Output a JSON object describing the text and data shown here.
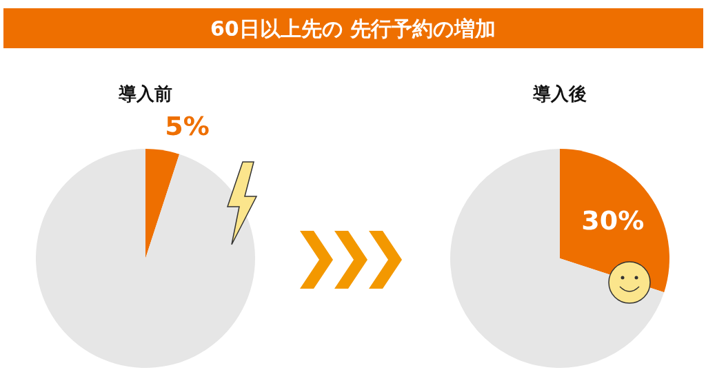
{
  "chart_data": [
    {
      "type": "pie",
      "title": "60日以上先の 先行予約の増加",
      "subtitle": "導入前",
      "categories": [
        null,
        null
      ],
      "values": [
        5,
        95
      ],
      "colors": [
        "#ee6f00",
        "#e6e6e6"
      ],
      "value_labels": [
        "5%",
        null
      ]
    },
    {
      "type": "pie",
      "subtitle": "導入後",
      "categories": [
        null,
        null
      ],
      "values": [
        30,
        70
      ],
      "colors": [
        "#ee6f00",
        "#e6e6e6"
      ],
      "value_labels": [
        "30%",
        null
      ]
    }
  ]
}
